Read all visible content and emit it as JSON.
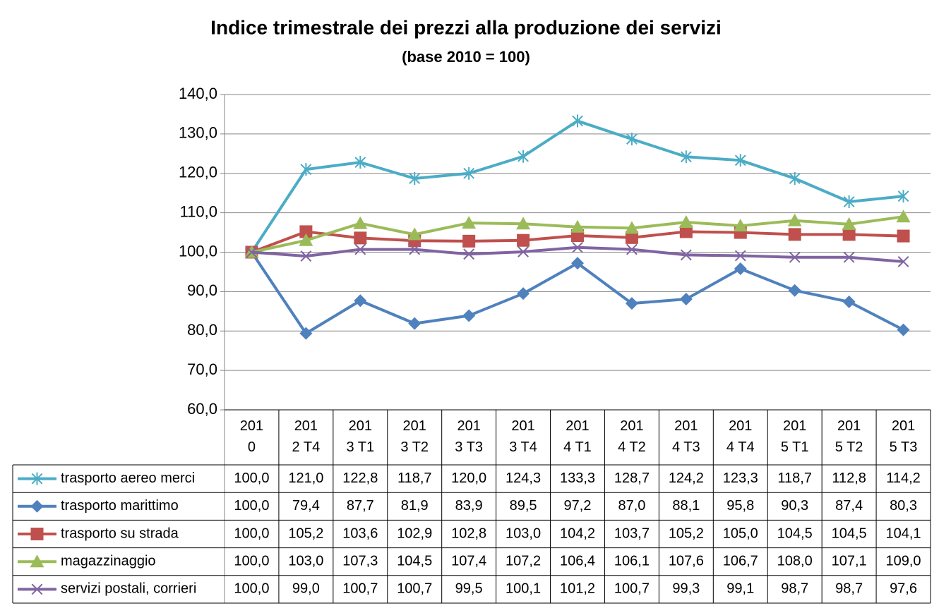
{
  "chart_data": {
    "type": "line",
    "title": "Indice trimestrale dei prezzi alla produzione dei servizi",
    "subtitle": "(base 2010 = 100)",
    "categories": [
      "2010",
      "2012 T4",
      "2013 T1",
      "2013 T2",
      "2013 T3",
      "2013 T4",
      "2014 T1",
      "2014 T2",
      "2014 T3",
      "2014 T4",
      "2015 T1",
      "2015 T2",
      "2015 T3"
    ],
    "ylim": [
      60,
      140
    ],
    "yticks": [
      {
        "value": 60,
        "label": "60,0"
      },
      {
        "value": 70,
        "label": "70,0"
      },
      {
        "value": 80,
        "label": "80,0"
      },
      {
        "value": 90,
        "label": "90,0"
      },
      {
        "value": 100,
        "label": "100,0"
      },
      {
        "value": 110,
        "label": "110,0"
      },
      {
        "value": 120,
        "label": "120,0"
      },
      {
        "value": 130,
        "label": "130,0"
      },
      {
        "value": 140,
        "label": "140,0"
      }
    ],
    "grid": true,
    "series": [
      {
        "name": "trasporto aereo merci",
        "color": "#4bacc6",
        "marker": "star",
        "values": [
          100.0,
          121.0,
          122.8,
          118.7,
          120.0,
          124.3,
          133.3,
          128.7,
          124.2,
          123.3,
          118.7,
          112.8,
          114.2
        ],
        "value_labels": [
          "100,0",
          "121,0",
          "122,8",
          "118,7",
          "120,0",
          "124,3",
          "133,3",
          "128,7",
          "124,2",
          "123,3",
          "118,7",
          "112,8",
          "114,2"
        ]
      },
      {
        "name": "trasporto marittimo",
        "color": "#4f81bd",
        "marker": "diamond",
        "values": [
          100.0,
          79.4,
          87.7,
          81.9,
          83.9,
          89.5,
          97.2,
          87.0,
          88.1,
          95.8,
          90.3,
          87.4,
          80.3
        ],
        "value_labels": [
          "100,0",
          "79,4",
          "87,7",
          "81,9",
          "83,9",
          "89,5",
          "97,2",
          "87,0",
          "88,1",
          "95,8",
          "90,3",
          "87,4",
          "80,3"
        ]
      },
      {
        "name": "trasporto su strada",
        "color": "#c0504d",
        "marker": "square",
        "values": [
          100.0,
          105.2,
          103.6,
          102.9,
          102.8,
          103.0,
          104.2,
          103.7,
          105.2,
          105.0,
          104.5,
          104.5,
          104.1
        ],
        "value_labels": [
          "100,0",
          "105,2",
          "103,6",
          "102,9",
          "102,8",
          "103,0",
          "104,2",
          "103,7",
          "105,2",
          "105,0",
          "104,5",
          "104,5",
          "104,1"
        ]
      },
      {
        "name": "magazzinaggio",
        "color": "#9bbb59",
        "marker": "triangle",
        "values": [
          100.0,
          103.0,
          107.3,
          104.5,
          107.4,
          107.2,
          106.4,
          106.1,
          107.6,
          106.7,
          108.0,
          107.1,
          109.0
        ],
        "value_labels": [
          "100,0",
          "103,0",
          "107,3",
          "104,5",
          "107,4",
          "107,2",
          "106,4",
          "106,1",
          "107,6",
          "106,7",
          "108,0",
          "107,1",
          "109,0"
        ]
      },
      {
        "name": "servizi postali, corrieri",
        "color": "#8064a2",
        "marker": "x",
        "values": [
          100.0,
          99.0,
          100.7,
          100.7,
          99.5,
          100.1,
          101.2,
          100.7,
          99.3,
          99.1,
          98.7,
          98.7,
          97.6
        ],
        "value_labels": [
          "100,0",
          "99,0",
          "100,7",
          "100,7",
          "99,5",
          "100,1",
          "101,2",
          "100,7",
          "99,3",
          "99,1",
          "98,7",
          "98,7",
          "97,6"
        ]
      }
    ]
  }
}
